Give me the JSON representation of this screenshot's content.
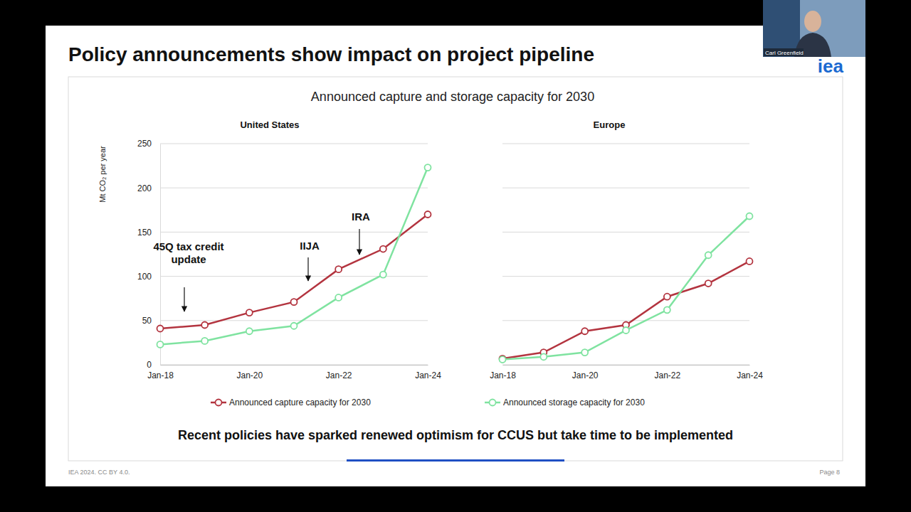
{
  "slide": {
    "title": "Policy announcements show impact on project pipeline",
    "chart_title": "Announced capture and storage capacity for 2030",
    "caption": "Recent policies have sparked renewed optimism for CCUS but take time to be implemented",
    "credit": "IEA 2024. CC BY 4.0.",
    "page": "Page 8",
    "logo": "iea",
    "presenter": "Carl Greenfield"
  },
  "chart_data": [
    {
      "type": "line",
      "title": "United States",
      "y_label": "Mt CO₂ per year",
      "categories": [
        "Jan-18",
        null,
        "Jan-20",
        null,
        "Jan-22",
        null,
        "Jan-24"
      ],
      "series": [
        {
          "name": "Announced capture capacity for 2030",
          "color": "#b3343f",
          "marker": "circle",
          "values": [
            41,
            45,
            59,
            71,
            108,
            131,
            170
          ]
        },
        {
          "name": "Announced storage capacity for 2030",
          "color": "#7fe3a0",
          "marker": "circle",
          "values": [
            23,
            27,
            38,
            44,
            76,
            102,
            223
          ]
        }
      ],
      "ylim": [
        0,
        250
      ],
      "yticks": [
        0,
        50,
        100,
        150,
        200,
        250
      ],
      "grid": true,
      "legend": "bottom",
      "annotations": [
        {
          "text": "45Q tax credit update"
        },
        {
          "text": "IIJA"
        },
        {
          "text": "IRA"
        }
      ]
    },
    {
      "type": "line",
      "title": "Europe",
      "categories": [
        "Jan-18",
        null,
        "Jan-20",
        null,
        "Jan-22",
        null,
        "Jan-24"
      ],
      "series": [
        {
          "name": "Announced capture capacity for 2030",
          "color": "#b3343f",
          "marker": "circle",
          "values": [
            7,
            14,
            38,
            45,
            77,
            92,
            117
          ]
        },
        {
          "name": "Announced storage capacity for 2030",
          "color": "#7fe3a0",
          "marker": "circle",
          "values": [
            6,
            9,
            14,
            39,
            62,
            124,
            168
          ]
        }
      ],
      "ylim": [
        0,
        250
      ],
      "yticks": [
        0,
        50,
        100,
        150,
        200,
        250
      ],
      "grid": true,
      "tick_labels": "x"
    }
  ]
}
